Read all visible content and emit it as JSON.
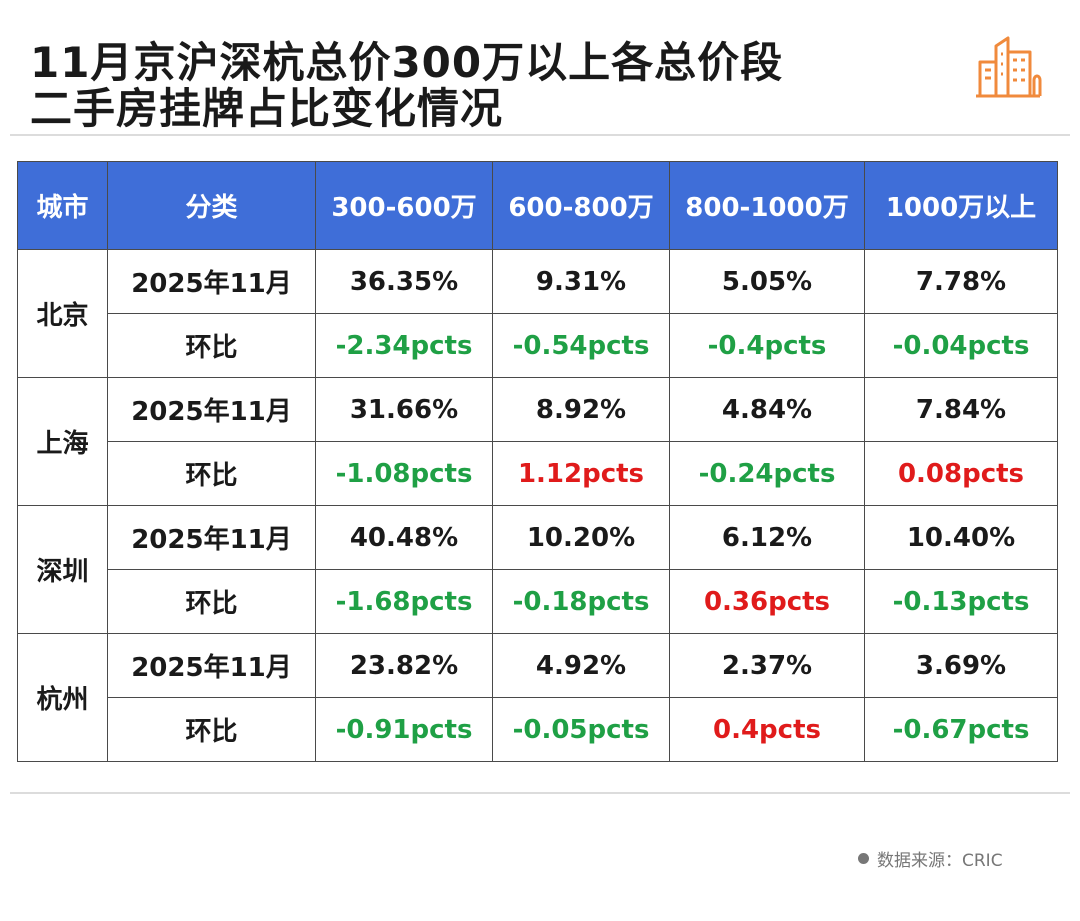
{
  "title": {
    "line1": "11月京沪深杭总价300万以上各总价段",
    "line2": "二手房挂牌占比变化情况"
  },
  "table": {
    "headers": [
      "城市",
      "分类",
      "300-600万",
      "600-800万",
      "800-1000万",
      "1000万以上"
    ],
    "cities": [
      {
        "name": "北京",
        "rows": [
          {
            "label": "2025年11月",
            "values": [
              "36.35%",
              "9.31%",
              "5.05%",
              "7.78%"
            ],
            "types": [
              "",
              "",
              "",
              ""
            ]
          },
          {
            "label": "环比",
            "values": [
              "-2.34pcts",
              "-0.54pcts",
              "-0.4pcts",
              "-0.04pcts"
            ],
            "types": [
              "neg",
              "neg",
              "neg",
              "neg"
            ]
          }
        ]
      },
      {
        "name": "上海",
        "rows": [
          {
            "label": "2025年11月",
            "values": [
              "31.66%",
              "8.92%",
              "4.84%",
              "7.84%"
            ],
            "types": [
              "",
              "",
              "",
              ""
            ]
          },
          {
            "label": "环比",
            "values": [
              "-1.08pcts",
              "1.12pcts",
              "-0.24pcts",
              "0.08pcts"
            ],
            "types": [
              "neg",
              "pos",
              "neg",
              "pos"
            ]
          }
        ]
      },
      {
        "name": "深圳",
        "rows": [
          {
            "label": "2025年11月",
            "values": [
              "40.48%",
              "10.20%",
              "6.12%",
              "10.40%"
            ],
            "types": [
              "",
              "",
              "",
              ""
            ]
          },
          {
            "label": "环比",
            "values": [
              "-1.68pcts",
              "-0.18pcts",
              "0.36pcts",
              "-0.13pcts"
            ],
            "types": [
              "neg",
              "neg",
              "pos",
              "neg"
            ]
          }
        ]
      },
      {
        "name": "杭州",
        "rows": [
          {
            "label": "2025年11月",
            "values": [
              "23.82%",
              "4.92%",
              "2.37%",
              "3.69%"
            ],
            "types": [
              "",
              "",
              "",
              ""
            ]
          },
          {
            "label": "环比",
            "values": [
              "-0.91pcts",
              "-0.05pcts",
              "0.4pcts",
              "-0.67pcts"
            ],
            "types": [
              "neg",
              "neg",
              "pos",
              "neg"
            ]
          }
        ]
      }
    ]
  },
  "source": "数据来源：CRIC",
  "colors": {
    "header_bg": "#3f6ed8",
    "negative": "#1fa045",
    "positive": "#e01b1b",
    "logo": "#f08a3c"
  },
  "icons": {
    "logo": "city-buildings-icon",
    "source_dot": "bullet-dot-icon"
  }
}
